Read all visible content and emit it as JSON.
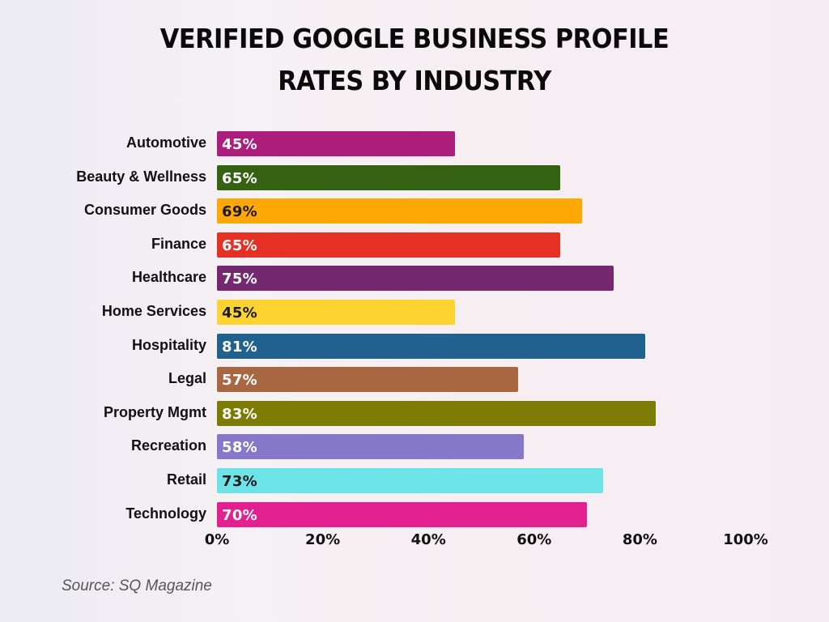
{
  "title_line1": "VERIFIED GOOGLE BUSINESS PROFILE",
  "title_line2": "RATES BY INDUSTRY",
  "source": "Source: SQ Magazine",
  "chart_data": {
    "type": "bar",
    "orientation": "horizontal",
    "title": "Verified Google Business Profile Rates by Industry",
    "xlabel": "",
    "ylabel": "",
    "xlim": [
      0,
      100
    ],
    "x_ticks": [
      "0%",
      "20%",
      "40%",
      "60%",
      "80%",
      "100%"
    ],
    "grid": false,
    "legend": null,
    "categories": [
      "Automotive",
      "Beauty & Wellness",
      "Consumer Goods",
      "Finance",
      "Healthcare",
      "Home Services",
      "Hospitality",
      "Legal",
      "Property Mgmt",
      "Recreation",
      "Retail",
      "Technology"
    ],
    "values": [
      45,
      65,
      69,
      65,
      75,
      45,
      81,
      57,
      83,
      58,
      73,
      70
    ],
    "value_labels": [
      "45%",
      "65%",
      "69%",
      "65%",
      "75%",
      "45%",
      "81%",
      "57%",
      "83%",
      "58%",
      "73%",
      "70%"
    ],
    "colors": [
      "#ad1e7c",
      "#356112",
      "#fea705",
      "#e62f25",
      "#73286f",
      "#fdd331",
      "#21618d",
      "#a86641",
      "#7e7b04",
      "#8678c8",
      "#6be3e7",
      "#e2208f"
    ],
    "label_colors": [
      "#ffffff",
      "#ffffff",
      "#1a1a1a",
      "#ffffff",
      "#ffffff",
      "#1a1a1a",
      "#ffffff",
      "#ffffff",
      "#ffffff",
      "#ffffff",
      "#1a1a1a",
      "#ffffff"
    ],
    "source": "Source: SQ Magazine"
  }
}
